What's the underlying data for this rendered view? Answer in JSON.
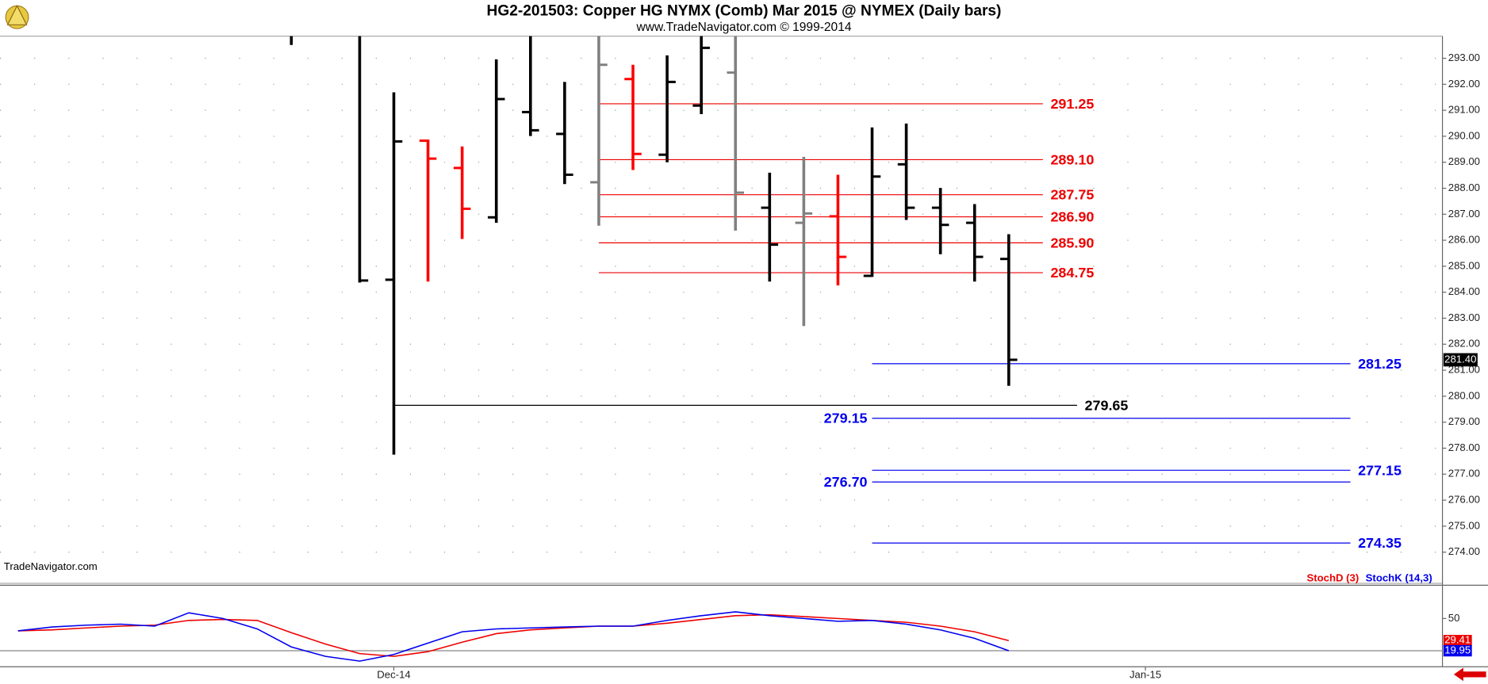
{
  "title": "HG2-201503:  Copper HG NYMX (Comb) Mar 2015 @ NYMEX  (Daily bars)",
  "subtitle": "www.TradeNavigator.com © 1999-2014",
  "watermark": "TradeNavigator.com",
  "chart_data": [
    {
      "type": "ohlc",
      "categories": [
        null,
        null,
        null,
        null,
        null,
        null,
        null,
        null,
        null,
        null,
        null,
        "Dec-14",
        null,
        null,
        null,
        null,
        null,
        null,
        null,
        null,
        null,
        null,
        null,
        null,
        null,
        null,
        null,
        null,
        null,
        null,
        null,
        null,
        null,
        "Jan-15",
        null,
        null,
        null,
        null,
        null,
        null,
        null,
        null
      ],
      "open": [
        null,
        null,
        null,
        null,
        null,
        null,
        null,
        null,
        null,
        null,
        null,
        284.48,
        289.83,
        288.78,
        286.88,
        290.93,
        290.09,
        288.23,
        292.2,
        289.29,
        291.18,
        292.45,
        287.25,
        286.67,
        286.92,
        284.63,
        288.92,
        287.25,
        286.67,
        285.28,
        null,
        null,
        null,
        null,
        null,
        null,
        null,
        null,
        null,
        null,
        null,
        null
      ],
      "high": [
        null,
        null,
        null,
        null,
        null,
        null,
        null,
        null,
        294.2,
        null,
        294.2,
        291.69,
        289.87,
        289.61,
        292.96,
        294.2,
        292.09,
        294.2,
        292.75,
        293.11,
        294.2,
        294.2,
        288.6,
        289.21,
        288.52,
        290.34,
        290.49,
        288.01,
        287.39,
        286.23,
        null,
        null,
        null,
        null,
        null,
        null,
        null,
        null,
        null,
        null,
        null,
        null
      ],
      "low": [
        null,
        null,
        null,
        null,
        null,
        null,
        null,
        null,
        293.51,
        null,
        284.37,
        277.75,
        284.41,
        286.05,
        286.67,
        290.01,
        288.16,
        286.56,
        288.7,
        289,
        290.85,
        286.37,
        284.41,
        282.7,
        284.26,
        284.59,
        286.78,
        285.46,
        284.41,
        280.4,
        null,
        null,
        null,
        null,
        null,
        null,
        null,
        null,
        null,
        null,
        null,
        null
      ],
      "close": [
        null,
        null,
        null,
        null,
        null,
        null,
        null,
        null,
        null,
        null,
        284.45,
        289.8,
        289.14,
        287.21,
        291.43,
        290.23,
        288.52,
        292.75,
        289.32,
        292.09,
        293.4,
        287.83,
        285.83,
        287.03,
        285.36,
        288.45,
        287.25,
        286.59,
        285.36,
        281.4,
        null,
        null,
        null,
        null,
        null,
        null,
        null,
        null,
        null,
        null,
        null,
        null
      ],
      "colors": [
        null,
        null,
        null,
        null,
        null,
        null,
        null,
        null,
        "#000000",
        null,
        "#000000",
        "#000000",
        "#ff0000",
        "#ff0000",
        "#000000",
        "#000000",
        "#000000",
        "#808080",
        "#ff0000",
        "#000000",
        "#000000",
        "#808080",
        "#000000",
        "#808080",
        "#ff0000",
        "#000000",
        "#000000",
        "#000000",
        "#000000",
        "#000000",
        null,
        null,
        null,
        null,
        null,
        null,
        null,
        null,
        null,
        null,
        null,
        null
      ],
      "ylim": [
        272.8,
        293.85
      ],
      "yticks": [
        {
          "value": 274,
          "label": "274.00"
        },
        {
          "value": 275,
          "label": "275.00"
        },
        {
          "value": 276,
          "label": "276.00"
        },
        {
          "value": 277,
          "label": "277.00"
        },
        {
          "value": 278,
          "label": "278.00"
        },
        {
          "value": 279,
          "label": "279.00"
        },
        {
          "value": 280,
          "label": "280.00"
        },
        {
          "value": 281,
          "label": "281.00"
        },
        {
          "value": 282,
          "label": "282.00"
        },
        {
          "value": 283,
          "label": "283.00"
        },
        {
          "value": 284,
          "label": "284.00"
        },
        {
          "value": 285,
          "label": "285.00"
        },
        {
          "value": 286,
          "label": "286.00"
        },
        {
          "value": 287,
          "label": "287.00"
        },
        {
          "value": 288,
          "label": "288.00"
        },
        {
          "value": 289,
          "label": "289.00"
        },
        {
          "value": 290,
          "label": "290.00"
        },
        {
          "value": 291,
          "label": "291.00"
        },
        {
          "value": 292,
          "label": "292.00"
        },
        {
          "value": 293,
          "label": "293.00"
        }
      ],
      "grid": true,
      "last_price": {
        "value": 281.4,
        "label": "281.40"
      },
      "levels": [
        {
          "color": "#ee0000",
          "span": [
            17,
            30
          ],
          "lines": [
            {
              "value": 291.25,
              "label": "291.25",
              "side": "right"
            },
            {
              "value": 289.1,
              "label": "289.10",
              "side": "right"
            },
            {
              "value": 287.75,
              "label": "287.75",
              "side": "right"
            },
            {
              "value": 286.9,
              "label": "286.90",
              "side": "right"
            },
            {
              "value": 285.9,
              "label": "285.90",
              "side": "right"
            },
            {
              "value": 284.75,
              "label": "284.75",
              "side": "right"
            }
          ]
        },
        {
          "color": "#000000",
          "span": [
            11,
            31
          ],
          "lines": [
            {
              "value": 279.65,
              "label": "279.65",
              "side": "right"
            }
          ]
        },
        {
          "color": "#0000ee",
          "span": [
            25,
            39
          ],
          "lines": [
            {
              "value": 281.25,
              "label": "281.25",
              "side": "right"
            },
            {
              "value": 279.15,
              "label": "279.15",
              "side": "left"
            },
            {
              "value": 277.15,
              "label": "277.15",
              "side": "right"
            },
            {
              "value": 276.7,
              "label": "276.70",
              "side": "left"
            },
            {
              "value": 274.35,
              "label": "274.35",
              "side": "right"
            }
          ]
        }
      ]
    },
    {
      "type": "line",
      "series": [
        {
          "name": "StochD (3)",
          "color": "#ee0000",
          "values": [
            38.5,
            39.4,
            41.2,
            42.9,
            43.8,
            48.2,
            49.1,
            48.2,
            36.8,
            26.2,
            17.3,
            14.7,
            19.1,
            27.9,
            35.9,
            39.4,
            41.2,
            42.9,
            42.9,
            45.6,
            49.1,
            52.6,
            53.5,
            51.8,
            50,
            48.2,
            46.5,
            42.9,
            37.6,
            29.41,
            null,
            null,
            null,
            null,
            null,
            null,
            null,
            null,
            null,
            null,
            null,
            null
          ]
        },
        {
          "name": "StochK (14,3)",
          "color": "#0000ee",
          "values": [
            38.5,
            42.1,
            43.8,
            44.7,
            42.9,
            55.3,
            50,
            40.3,
            23.5,
            14.7,
            10.3,
            16.5,
            27.1,
            37.6,
            40.3,
            41.2,
            42.1,
            42.9,
            42.9,
            48.2,
            52.6,
            56.2,
            52.6,
            50,
            47.4,
            48.2,
            44.7,
            39.4,
            31.5,
            19.95,
            null,
            null,
            null,
            null,
            null,
            null,
            null,
            null,
            null,
            null,
            null,
            null
          ]
        }
      ],
      "ylim": [
        5,
        81
      ],
      "yticks": [
        50
      ],
      "hlines": [
        20
      ]
    }
  ]
}
